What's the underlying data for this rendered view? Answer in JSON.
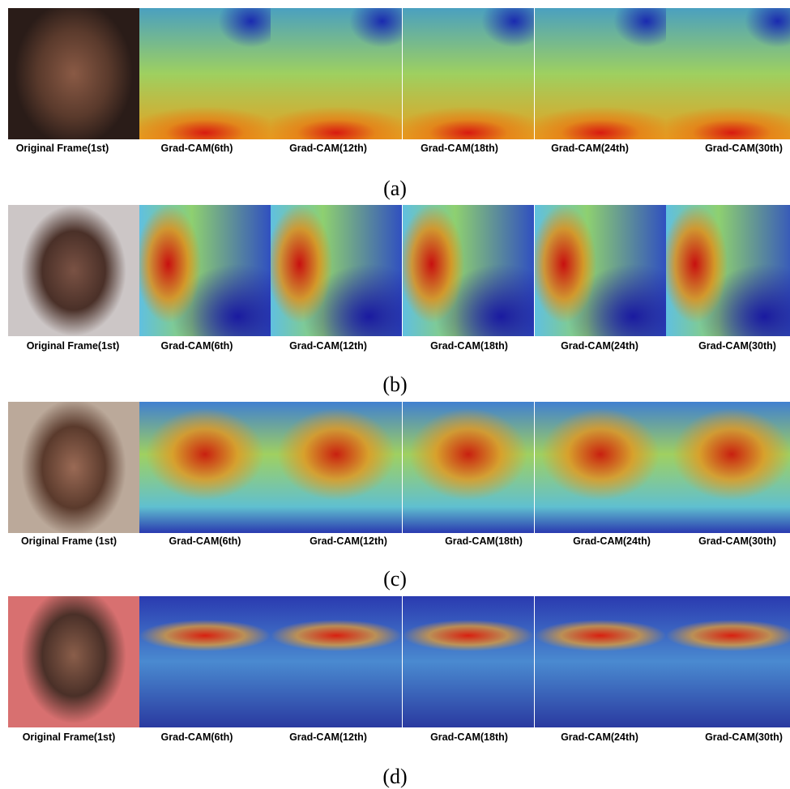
{
  "figure": {
    "rows": [
      {
        "labels": [
          "Original Frame(1st)",
          "Grad-CAM(6th)",
          "Grad-CAM(12th)",
          "Grad-CAM(18th)",
          "Grad-CAM(24th)",
          "Grad-CAM(30th)"
        ],
        "caption": "(a)"
      },
      {
        "labels": [
          "Original Frame(1st)",
          "Grad-CAM(6th)",
          "Grad-CAM(12th)",
          "Grad-CAM(18th)",
          "Grad-CAM(24th)",
          "Grad-CAM(30th)"
        ],
        "caption": "(b)"
      },
      {
        "labels": [
          "Original Frame (1st)",
          "Grad-CAM(6th)",
          "Grad-CAM(12th)",
          "Grad-CAM(18th)",
          "Grad-CAM(24th)",
          "Grad-CAM(30th)"
        ],
        "caption": "(c)"
      },
      {
        "labels": [
          "Original Frame(1st)",
          "Grad-CAM(6th)",
          "Grad-CAM(12th)",
          "Grad-CAM(18th)",
          "Grad-CAM(24th)",
          "Grad-CAM(30th)"
        ],
        "caption": "(d)"
      }
    ]
  }
}
